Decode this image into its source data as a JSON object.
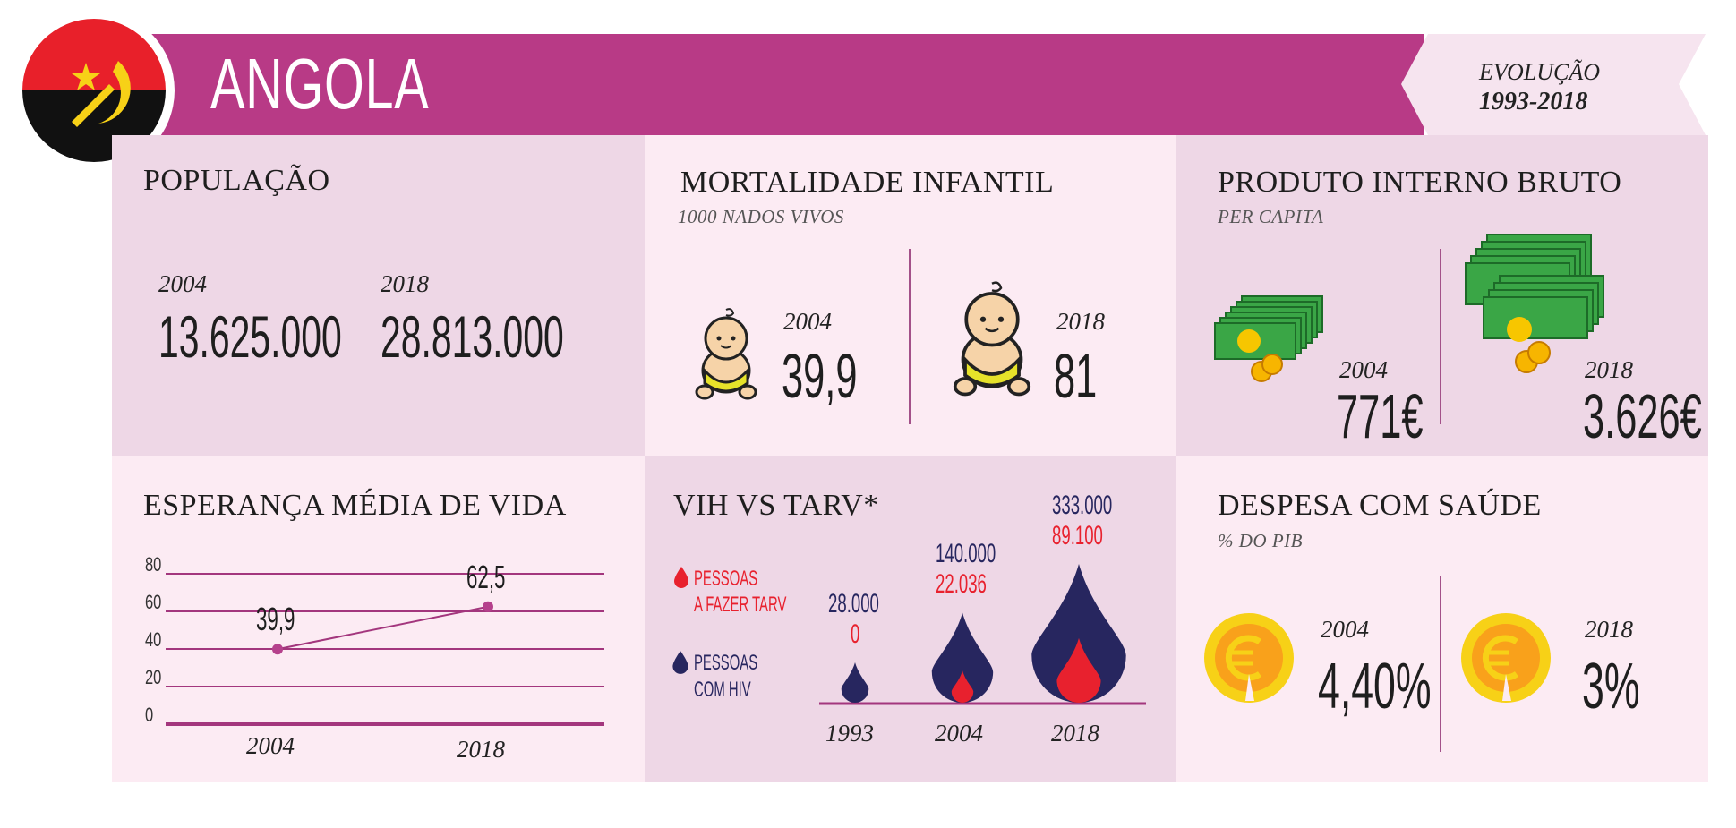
{
  "header": {
    "title": "ANGOLA",
    "evolution_label": "EVOLUÇÃO",
    "evolution_years": "1993-2018"
  },
  "colors": {
    "banner": "#b83a86",
    "panel_dark": "#eed7e6",
    "panel_light": "#fcebf3",
    "hiv_navy": "#27265f",
    "tarv_red": "#e8212e"
  },
  "populacao": {
    "title": "POPULAÇÃO",
    "year1": "2004",
    "value1": "13.625.000",
    "year2": "2018",
    "value2": "28.813.000"
  },
  "mortalidade": {
    "title": "MORTALIDADE INFANTIL",
    "subtitle": "1000 NADOS VIVOS",
    "year1": "2004",
    "value1": "39,9",
    "year2": "2018",
    "value2": "81",
    "icon": "baby-icon"
  },
  "pib": {
    "title": "PRODUTO INTERNO BRUTO",
    "subtitle": "PER CAPITA",
    "year1": "2004",
    "value1": "771€",
    "year2": "2018",
    "value2": "3.626€",
    "icon": "money-stack-icon"
  },
  "esperanca": {
    "title": "ESPERANÇA MÉDIA DE VIDA",
    "chart_data": {
      "type": "line",
      "x": [
        "2004",
        "2018"
      ],
      "y": [
        39.9,
        62.5
      ],
      "data_labels": [
        "39,9",
        "62,5"
      ],
      "y_ticks": [
        "80",
        "60",
        "40",
        "20",
        "0"
      ],
      "ylim": [
        0,
        80
      ],
      "grid": true
    }
  },
  "vih": {
    "title": "VIH VS TARV*",
    "legend_tarv": [
      "PESSOAS",
      "A FAZER TARV"
    ],
    "legend_hiv": [
      "PESSOAS",
      "COM HIV"
    ],
    "chart_data": {
      "type": "bubble",
      "categories": [
        "1993",
        "2004",
        "2018"
      ],
      "series": [
        {
          "name": "PESSOAS COM HIV",
          "values": [
            28000,
            140000,
            333000
          ],
          "labels": [
            "28.000",
            "140.000",
            "333.000"
          ]
        },
        {
          "name": "PESSOAS A FAZER TARV",
          "values": [
            0,
            22036,
            89100
          ],
          "labels": [
            "0",
            "22.036",
            "89.100"
          ]
        }
      ]
    }
  },
  "despesa": {
    "title": "DESPESA COM SAÚDE",
    "subtitle": "% DO PIB",
    "year1": "2004",
    "value1": "4,40%",
    "year2": "2018",
    "value2": "3%",
    "icon": "euro-coin-icon"
  }
}
